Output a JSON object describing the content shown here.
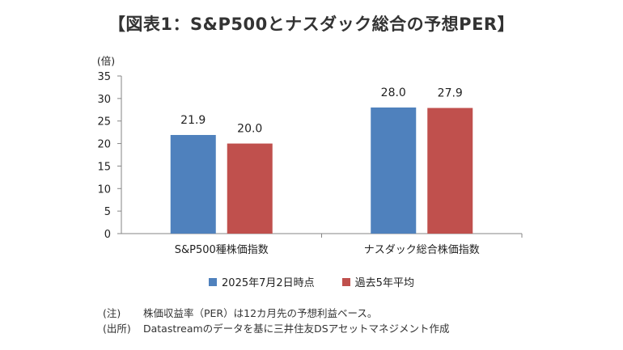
{
  "chart_data": {
    "type": "bar",
    "title": "【図表1：S&P500とナスダック総合の予想PER】",
    "ylabel": "(倍)",
    "ylim": [
      0,
      35
    ],
    "yticks": [
      0,
      5,
      10,
      15,
      20,
      25,
      30,
      35
    ],
    "categories": [
      "S&P500種株価指数",
      "ナスダック総合株価指数"
    ],
    "series": [
      {
        "name": "2025年7月2日時点",
        "values": [
          21.9,
          28.0
        ],
        "labels": [
          "21.9",
          "28.0"
        ],
        "color": "#4f81bd"
      },
      {
        "name": "過去5年平均",
        "values": [
          20.0,
          27.9
        ],
        "labels": [
          "20.0",
          "27.9"
        ],
        "color": "#c0504d"
      }
    ],
    "legend_position": "bottom",
    "grid": false
  },
  "notes": [
    {
      "label": "(注)",
      "text": "株価収益率（PER）は12カ月先の予想利益ベース。"
    },
    {
      "label": "(出所)",
      "text": "Datastreamのデータを基に三井住友DSアセットマネジメント作成"
    }
  ]
}
